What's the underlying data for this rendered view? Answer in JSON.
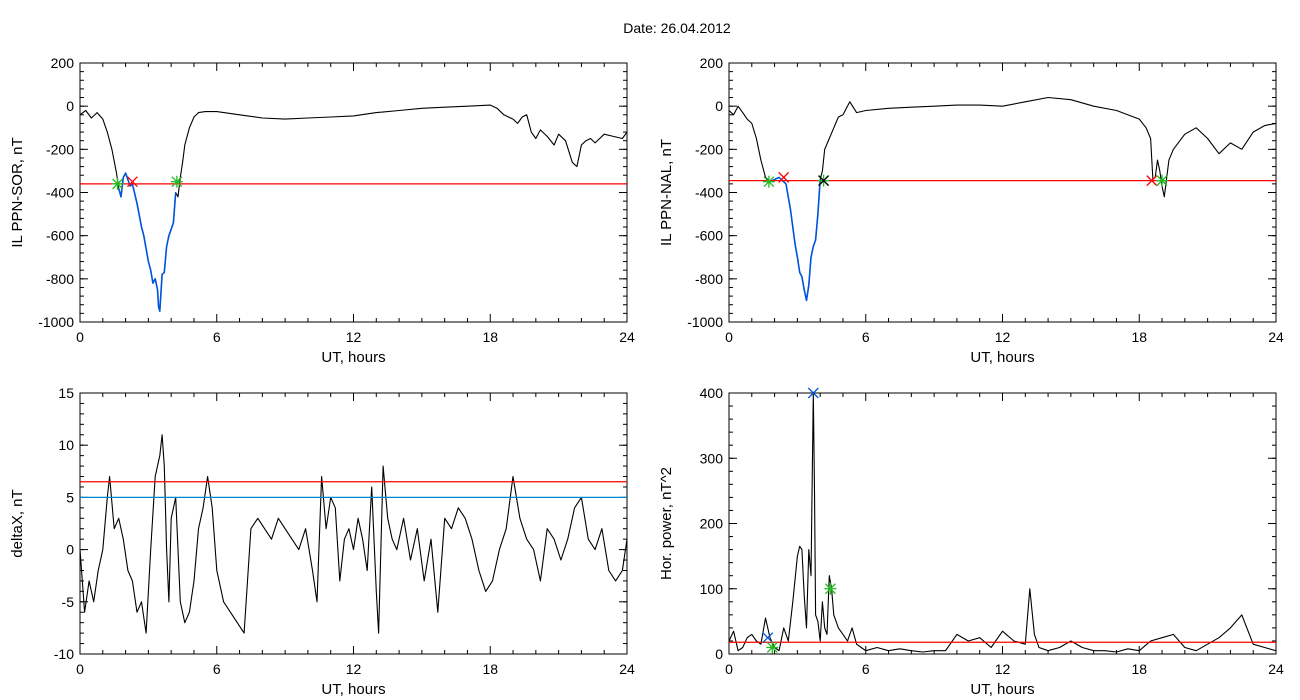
{
  "figure": {
    "title": "Date:  26.04.2012"
  },
  "chart_data": [
    {
      "id": "sor",
      "type": "line",
      "xlabel": "UT, hours",
      "ylabel": "IL PPN-SOR, nT",
      "xlim": [
        0,
        24
      ],
      "ylim": [
        -1000,
        200
      ],
      "xticks": [
        0,
        6,
        12,
        18,
        24
      ],
      "yticks": [
        -1000,
        -800,
        -600,
        -400,
        -200,
        0,
        200
      ],
      "series": [
        {
          "role": "index",
          "color": "#000000",
          "x": [
            0,
            0.25,
            0.5,
            0.75,
            1.0,
            1.2,
            1.4,
            1.6,
            1.7,
            1.8,
            1.9,
            2.0,
            2.2,
            2.3,
            2.5,
            2.7,
            2.8,
            3.0,
            3.1,
            3.2,
            3.3,
            3.4,
            3.45,
            3.5,
            3.6,
            3.7,
            3.8,
            3.9,
            4.0,
            4.1,
            4.2,
            4.3,
            4.4,
            4.5,
            4.6,
            4.8,
            5.0,
            5.2,
            5.5,
            6,
            7,
            8,
            9,
            10,
            11,
            12,
            13,
            14,
            15,
            16,
            17,
            18,
            18.3,
            18.6,
            19.0,
            19.2,
            19.4,
            19.6,
            19.8,
            20.0,
            20.2,
            20.5,
            20.8,
            21.0,
            21.3,
            21.6,
            21.8,
            22.0,
            22.2,
            22.4,
            22.6,
            23.0,
            23.4,
            23.8,
            24
          ],
          "y": [
            -40,
            -20,
            -55,
            -30,
            -60,
            -120,
            -200,
            -310,
            -380,
            -420,
            -330,
            -310,
            -370,
            -360,
            -450,
            -560,
            -600,
            -720,
            -760,
            -820,
            -800,
            -850,
            -930,
            -950,
            -780,
            -770,
            -650,
            -600,
            -570,
            -540,
            -400,
            -420,
            -330,
            -260,
            -180,
            -100,
            -50,
            -30,
            -25,
            -25,
            -40,
            -55,
            -60,
            -55,
            -50,
            -45,
            -30,
            -20,
            -10,
            -5,
            0,
            5,
            -10,
            -40,
            -60,
            -80,
            -50,
            -40,
            -120,
            -150,
            -110,
            -140,
            -180,
            -130,
            -160,
            -260,
            -280,
            -180,
            -160,
            -150,
            -170,
            -130,
            -140,
            -150,
            -120
          ]
        },
        {
          "role": "event",
          "color": "#0055dd",
          "x": [
            1.7,
            1.8,
            1.9,
            2.0,
            2.2,
            2.3,
            2.5,
            2.7,
            2.8,
            3.0,
            3.1,
            3.2,
            3.3,
            3.4,
            3.45,
            3.5,
            3.6,
            3.7,
            3.8,
            3.9,
            4.0,
            4.1,
            4.2
          ],
          "y": [
            -380,
            -420,
            -330,
            -310,
            -370,
            -360,
            -450,
            -560,
            -600,
            -720,
            -760,
            -820,
            -800,
            -850,
            -930,
            -950,
            -780,
            -770,
            -650,
            -600,
            -570,
            -540,
            -400
          ]
        }
      ],
      "hlines": [
        {
          "y": -360,
          "color": "#ff0000"
        }
      ],
      "markers": [
        {
          "x": 1.65,
          "y": -360,
          "color": "#22bb22",
          "shape": "asterisk"
        },
        {
          "x": 2.3,
          "y": -350,
          "color": "#ff0000",
          "shape": "x"
        },
        {
          "x": 4.25,
          "y": -350,
          "color": "#22bb22",
          "shape": "asterisk"
        }
      ]
    },
    {
      "id": "nal",
      "type": "line",
      "xlabel": "UT, hours",
      "ylabel": "IL PPN-NAL, nT",
      "xlim": [
        0,
        24
      ],
      "ylim": [
        -1000,
        200
      ],
      "xticks": [
        0,
        6,
        12,
        18,
        24
      ],
      "yticks": [
        -1000,
        -800,
        -600,
        -400,
        -200,
        0,
        200
      ],
      "series": [
        {
          "role": "index",
          "color": "#000000",
          "x": [
            0,
            0.2,
            0.4,
            0.6,
            0.8,
            1.0,
            1.2,
            1.4,
            1.6,
            1.8,
            2.0,
            2.2,
            2.5,
            2.7,
            2.9,
            3.0,
            3.1,
            3.2,
            3.3,
            3.4,
            3.5,
            3.6,
            3.7,
            3.8,
            3.9,
            4.0,
            4.1,
            4.2,
            4.4,
            4.6,
            4.8,
            5.0,
            5.3,
            5.6,
            6,
            7,
            8,
            9,
            10,
            11,
            12,
            13,
            14,
            15,
            16,
            17,
            18,
            18.3,
            18.5,
            18.6,
            18.7,
            18.8,
            18.9,
            19.0,
            19.1,
            19.3,
            19.5,
            20.0,
            20.5,
            21.0,
            21.5,
            22.0,
            22.5,
            23.0,
            23.5,
            24
          ],
          "y": [
            -20,
            -40,
            0,
            -30,
            -60,
            -80,
            -150,
            -250,
            -330,
            -350,
            -340,
            -330,
            -360,
            -480,
            -640,
            -700,
            -770,
            -790,
            -850,
            -900,
            -830,
            -700,
            -650,
            -620,
            -500,
            -340,
            -300,
            -200,
            -150,
            -100,
            -50,
            -40,
            20,
            -30,
            -20,
            -10,
            -5,
            0,
            5,
            5,
            0,
            20,
            40,
            30,
            0,
            -20,
            -60,
            -100,
            -150,
            -340,
            -330,
            -250,
            -300,
            -370,
            -420,
            -250,
            -200,
            -130,
            -100,
            -150,
            -220,
            -170,
            -200,
            -120,
            -90,
            -80
          ]
        },
        {
          "role": "event",
          "color": "#0055dd",
          "x": [
            1.8,
            2.0,
            2.2,
            2.5,
            2.7,
            2.9,
            3.0,
            3.1,
            3.2,
            3.3,
            3.4,
            3.5,
            3.6,
            3.7,
            3.8,
            3.9,
            4.0
          ],
          "y": [
            -350,
            -340,
            -330,
            -360,
            -480,
            -640,
            -700,
            -770,
            -790,
            -850,
            -900,
            -830,
            -700,
            -650,
            -620,
            -500,
            -340
          ]
        }
      ],
      "hlines": [
        {
          "y": -345,
          "color": "#ff0000"
        }
      ],
      "markers": [
        {
          "x": 1.75,
          "y": -350,
          "color": "#22bb22",
          "shape": "asterisk"
        },
        {
          "x": 2.4,
          "y": -330,
          "color": "#ff0000",
          "shape": "x"
        },
        {
          "x": 4.15,
          "y": -345,
          "color": "#22bb22",
          "shape": "asterisk"
        },
        {
          "x": 4.15,
          "y": -345,
          "color": "#000000",
          "shape": "x"
        },
        {
          "x": 18.55,
          "y": -345,
          "color": "#ff0000",
          "shape": "x"
        },
        {
          "x": 19.0,
          "y": -345,
          "color": "#22bb22",
          "shape": "asterisk"
        }
      ]
    },
    {
      "id": "deltax",
      "type": "line",
      "xlabel": "UT, hours",
      "ylabel": "deltaX, nT",
      "xlim": [
        0,
        24
      ],
      "ylim": [
        -10,
        15
      ],
      "xticks": [
        0,
        6,
        12,
        18,
        24
      ],
      "yticks": [
        -10,
        -5,
        0,
        5,
        10,
        15
      ],
      "series": [
        {
          "role": "index",
          "color": "#000000",
          "x": [
            0,
            0.2,
            0.4,
            0.6,
            0.8,
            1.0,
            1.2,
            1.3,
            1.5,
            1.7,
            1.9,
            2.1,
            2.3,
            2.5,
            2.7,
            2.9,
            3.1,
            3.3,
            3.5,
            3.6,
            3.7,
            3.8,
            3.9,
            4.0,
            4.2,
            4.4,
            4.6,
            4.8,
            5.0,
            5.2,
            5.4,
            5.6,
            5.8,
            6.0,
            6.3,
            6.6,
            6.9,
            7.2,
            7.5,
            7.8,
            8.1,
            8.4,
            8.7,
            9.0,
            9.3,
            9.6,
            9.9,
            10.2,
            10.4,
            10.6,
            10.8,
            11.0,
            11.2,
            11.4,
            11.6,
            11.8,
            12.0,
            12.2,
            12.4,
            12.6,
            12.8,
            13.0,
            13.1,
            13.3,
            13.5,
            13.7,
            13.9,
            14.2,
            14.5,
            14.8,
            15.1,
            15.4,
            15.7,
            16.0,
            16.3,
            16.6,
            16.9,
            17.2,
            17.5,
            17.8,
            18.1,
            18.4,
            18.7,
            19.0,
            19.3,
            19.6,
            19.9,
            20.2,
            20.5,
            20.8,
            21.1,
            21.4,
            21.7,
            22.0,
            22.3,
            22.6,
            22.9,
            23.2,
            23.5,
            23.8,
            24
          ],
          "y": [
            0,
            -6,
            -3,
            -5,
            -2,
            0,
            5,
            7,
            2,
            3,
            1,
            -2,
            -3,
            -6,
            -5,
            -8,
            0,
            7,
            9,
            11,
            8,
            0,
            -5,
            3,
            5,
            -5,
            -7,
            -6,
            -3,
            2,
            4,
            7,
            4,
            -2,
            -5,
            -6,
            -7,
            -8,
            2,
            3,
            2,
            1,
            3,
            2,
            1,
            0,
            2,
            -2,
            -5,
            7,
            2,
            5,
            4,
            -3,
            1,
            2,
            0,
            3,
            1,
            -2,
            6,
            -4,
            -8,
            8,
            3,
            1,
            0,
            3,
            -1,
            2,
            -3,
            1,
            -6,
            3,
            2,
            4,
            3,
            1,
            -2,
            -4,
            -3,
            0,
            2,
            7,
            3,
            1,
            0,
            -3,
            2,
            1,
            -1,
            1,
            4,
            5,
            1,
            0,
            2,
            -2,
            -3,
            -2,
            1
          ]
        }
      ],
      "hlines": [
        {
          "y": 6.5,
          "color": "#ff0000"
        },
        {
          "y": 5.0,
          "color": "#0088cc"
        }
      ],
      "markers": []
    },
    {
      "id": "power",
      "type": "line",
      "xlabel": "UT, hours",
      "ylabel": "Hor. power, nT^2",
      "xlim": [
        0,
        24
      ],
      "ylim": [
        0,
        400
      ],
      "xticks": [
        0,
        6,
        12,
        18,
        24
      ],
      "yticks": [
        0,
        100,
        200,
        300,
        400
      ],
      "series": [
        {
          "role": "index",
          "color": "#000000",
          "x": [
            0,
            0.2,
            0.4,
            0.6,
            0.8,
            1.0,
            1.2,
            1.4,
            1.6,
            1.8,
            2.0,
            2.2,
            2.4,
            2.6,
            2.8,
            3.0,
            3.1,
            3.2,
            3.3,
            3.4,
            3.5,
            3.6,
            3.7,
            3.75,
            3.8,
            3.9,
            4.0,
            4.1,
            4.2,
            4.3,
            4.4,
            4.5,
            4.6,
            4.8,
            5.0,
            5.2,
            5.4,
            5.6,
            5.8,
            6.0,
            6.5,
            7.0,
            7.5,
            8.0,
            8.5,
            9.0,
            9.5,
            10.0,
            10.5,
            11.0,
            11.5,
            12.0,
            12.5,
            13.0,
            13.2,
            13.4,
            13.6,
            14.0,
            14.5,
            15.0,
            15.5,
            16.0,
            16.5,
            17.0,
            17.5,
            18.0,
            18.5,
            19.0,
            19.5,
            20.0,
            20.5,
            21.0,
            21.5,
            22.0,
            22.5,
            23.0,
            23.5,
            24
          ],
          "y": [
            20,
            35,
            5,
            10,
            25,
            30,
            20,
            15,
            55,
            25,
            10,
            5,
            40,
            20,
            80,
            150,
            165,
            160,
            90,
            40,
            160,
            120,
            400,
            250,
            60,
            50,
            20,
            80,
            40,
            30,
            120,
            100,
            60,
            40,
            30,
            20,
            40,
            15,
            10,
            5,
            10,
            5,
            8,
            5,
            3,
            5,
            5,
            30,
            20,
            25,
            10,
            35,
            20,
            15,
            100,
            30,
            10,
            5,
            10,
            20,
            10,
            5,
            5,
            3,
            8,
            5,
            20,
            25,
            30,
            10,
            5,
            15,
            25,
            40,
            60,
            15,
            10,
            5
          ]
        }
      ],
      "hlines": [
        {
          "y": 18,
          "color": "#ff0000"
        }
      ],
      "markers": [
        {
          "x": 1.7,
          "y": 25,
          "color": "#0055dd",
          "shape": "x"
        },
        {
          "x": 1.9,
          "y": 10,
          "color": "#22bb22",
          "shape": "asterisk"
        },
        {
          "x": 3.7,
          "y": 400,
          "color": "#0055dd",
          "shape": "x"
        },
        {
          "x": 4.45,
          "y": 100,
          "color": "#22bb22",
          "shape": "asterisk"
        }
      ]
    }
  ]
}
